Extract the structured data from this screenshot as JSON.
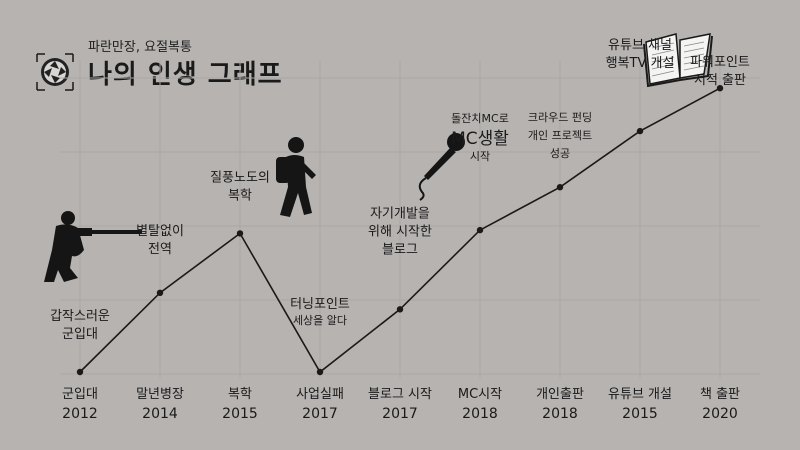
{
  "header": {
    "subtitle": "파란만장, 요절복통",
    "title": "나의 인생 그래프"
  },
  "chart_data": {
    "type": "line",
    "title": "나의 인생 그래프",
    "subtitle": "파란만장, 요절복통",
    "grid": true,
    "categories": [
      {
        "label": "군입대",
        "year": "2012"
      },
      {
        "label": "말년병장",
        "year": "2014"
      },
      {
        "label": "복학",
        "year": "2015"
      },
      {
        "label": "사업실패",
        "year": "2017"
      },
      {
        "label": "블로그 시작",
        "year": "2017"
      },
      {
        "label": "MC시작",
        "year": "2018"
      },
      {
        "label": "개인출판",
        "year": "2018"
      },
      {
        "label": "유튜브 개설",
        "year": "2015"
      },
      {
        "label": "책 출판",
        "year": "2020"
      }
    ],
    "values": [
      0,
      2.4,
      4.2,
      0,
      1.9,
      4.3,
      5.6,
      7.3,
      8.6
    ],
    "ylim": [
      0,
      9
    ],
    "annotations": [
      {
        "lines": [
          "갑작스러운",
          "군입대"
        ]
      },
      {
        "lines": [
          "별탈없이",
          "전역"
        ]
      },
      {
        "lines": [
          "질풍노도의",
          "복학"
        ]
      },
      {
        "lines": [
          "터닝포인트"
        ],
        "sub": "세상을 알다"
      },
      {
        "lines": [
          "자기개발을",
          "위해 시작한",
          "블로그"
        ]
      },
      {
        "pre": "돌잔치MC로",
        "lines": [
          "MC생활"
        ],
        "sub": "시작"
      },
      {
        "lines": [
          "크라우드 펀딩",
          "개인 프로젝트",
          "성공"
        ]
      },
      {
        "lines": [
          "유튜브 채널",
          "행복TV 개설"
        ]
      },
      {
        "lines": [
          "파워포인트",
          "서적 출판"
        ]
      }
    ],
    "icons": [
      "soldier-silhouette-icon",
      "backpacker-silhouette-icon",
      "microphone-icon",
      "open-book-icon",
      "camera-aperture-icon"
    ]
  }
}
